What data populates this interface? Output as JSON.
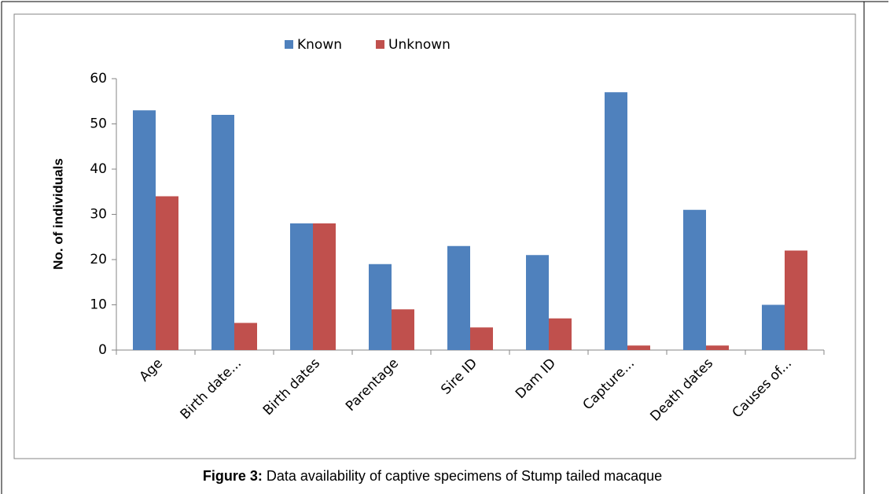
{
  "chart_data": {
    "type": "bar",
    "caption_label": "Figure 3:",
    "caption_text": "Data availability of captive specimens of Stump tailed macaque",
    "y_label": "No. of individuals",
    "categories": [
      "Age",
      "Birth date...",
      "Birth dates",
      "Parentage",
      "Sire ID",
      "Dam ID",
      "Capture...",
      "Death dates",
      "Causes of..."
    ],
    "series": [
      {
        "name": "Known",
        "color": "#4f81bd",
        "values": [
          53,
          52,
          28,
          19,
          23,
          21,
          57,
          31,
          10
        ]
      },
      {
        "name": "Unknown",
        "color": "#c0504d",
        "values": [
          34,
          6,
          28,
          9,
          5,
          7,
          1,
          1,
          22
        ]
      }
    ],
    "ylim": [
      0,
      60
    ],
    "yticks": [
      0,
      10,
      20,
      30,
      40,
      50,
      60
    ],
    "grid": false,
    "legend": "top"
  }
}
